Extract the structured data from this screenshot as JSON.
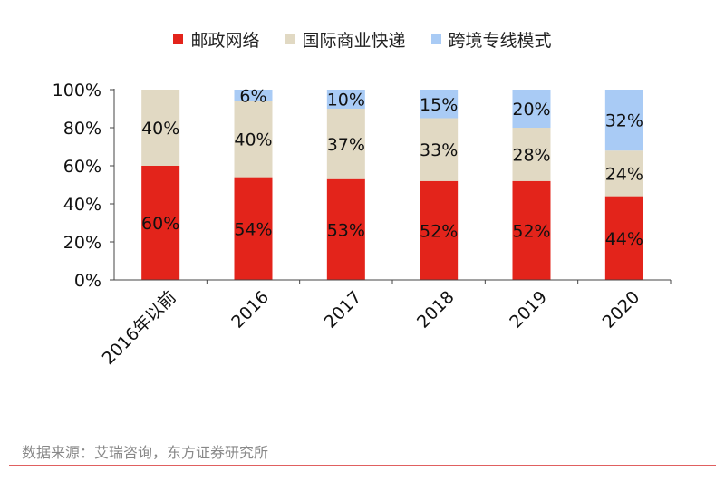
{
  "chart_data": {
    "type": "bar",
    "stacked": true,
    "orientation": "vertical",
    "categories": [
      "2016年以前",
      "2016",
      "2017",
      "2018",
      "2019",
      "2020"
    ],
    "series": [
      {
        "name": "邮政网络",
        "color": "#e3241b",
        "values": [
          60,
          54,
          53,
          52,
          52,
          44
        ],
        "labels": [
          "60%",
          "54%",
          "53%",
          "52%",
          "52%",
          "44%"
        ]
      },
      {
        "name": "国际商业快递",
        "color": "#e1d9c3",
        "values": [
          40,
          40,
          37,
          33,
          28,
          24
        ],
        "labels": [
          "40%",
          "40%",
          "37%",
          "33%",
          "28%",
          "24%"
        ]
      },
      {
        "name": "跨境专线模式",
        "color": "#a9cbf5",
        "values": [
          0,
          6,
          10,
          15,
          20,
          32
        ],
        "labels": [
          "",
          "6%",
          "10%",
          "15%",
          "20%",
          "32%"
        ]
      }
    ],
    "y_ticks": [
      "0%",
      "20%",
      "40%",
      "60%",
      "80%",
      "100%"
    ],
    "ylim": [
      0,
      100
    ],
    "grid": false,
    "legend_position": "top"
  },
  "source_text": "数据来源：艾瑞咨询，东方证券研究所"
}
